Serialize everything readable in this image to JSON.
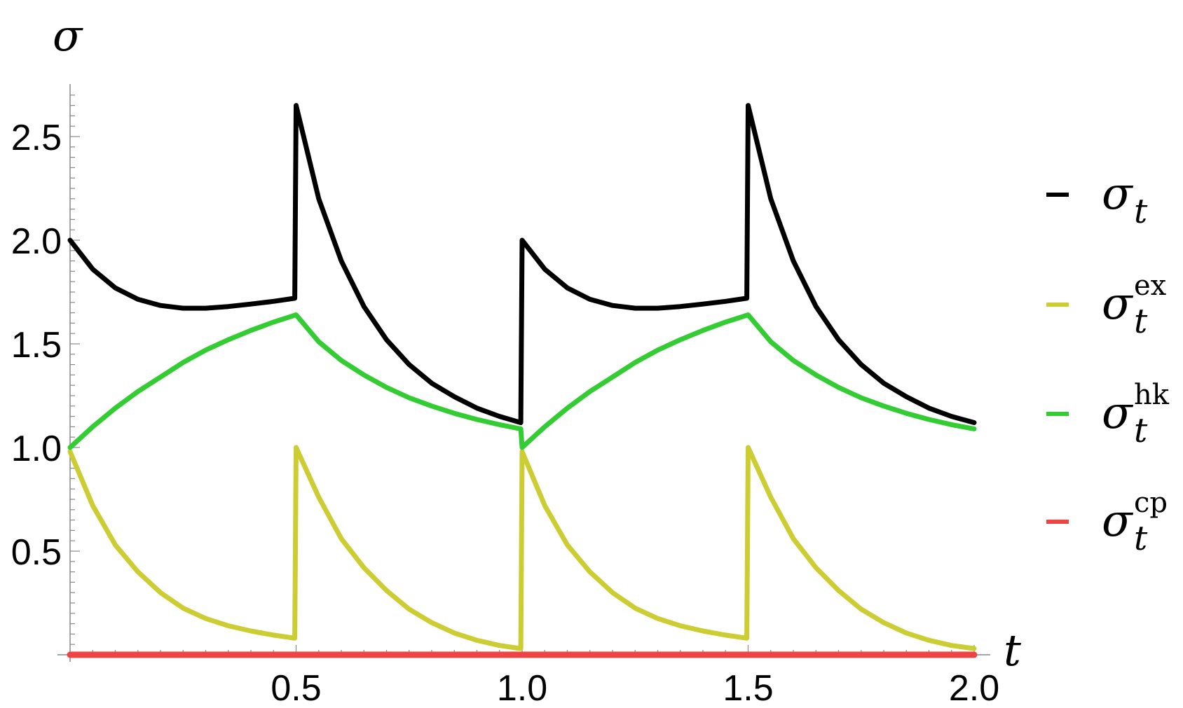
{
  "chart_data": {
    "type": "line",
    "title": "",
    "xlabel": "t",
    "ylabel": "σ",
    "xlim": [
      0,
      2.0
    ],
    "ylim": [
      0,
      2.7
    ],
    "x_ticks": [
      "0.5",
      "1.0",
      "1.5",
      "2.0"
    ],
    "y_ticks": [
      "0.5",
      "1.0",
      "1.5",
      "2.0",
      "2.5"
    ],
    "legend_position": "right",
    "series": [
      {
        "name": "σ_t",
        "base": "σ",
        "sub": "t",
        "sup": "",
        "color": "#000000",
        "points": [
          [
            0.0,
            2.0
          ],
          [
            0.05,
            1.86
          ],
          [
            0.1,
            1.77
          ],
          [
            0.15,
            1.715
          ],
          [
            0.2,
            1.685
          ],
          [
            0.25,
            1.672
          ],
          [
            0.3,
            1.672
          ],
          [
            0.35,
            1.68
          ],
          [
            0.4,
            1.692
          ],
          [
            0.45,
            1.705
          ],
          [
            0.497,
            1.72
          ],
          [
            0.5,
            2.65
          ],
          [
            0.55,
            2.2
          ],
          [
            0.6,
            1.9
          ],
          [
            0.65,
            1.68
          ],
          [
            0.7,
            1.52
          ],
          [
            0.75,
            1.4
          ],
          [
            0.8,
            1.31
          ],
          [
            0.85,
            1.245
          ],
          [
            0.9,
            1.19
          ],
          [
            0.95,
            1.15
          ],
          [
            0.997,
            1.12
          ],
          [
            1.0,
            2.0
          ],
          [
            1.05,
            1.86
          ],
          [
            1.1,
            1.77
          ],
          [
            1.15,
            1.715
          ],
          [
            1.2,
            1.685
          ],
          [
            1.25,
            1.672
          ],
          [
            1.3,
            1.672
          ],
          [
            1.35,
            1.68
          ],
          [
            1.4,
            1.692
          ],
          [
            1.45,
            1.705
          ],
          [
            1.497,
            1.72
          ],
          [
            1.5,
            2.65
          ],
          [
            1.55,
            2.2
          ],
          [
            1.6,
            1.9
          ],
          [
            1.65,
            1.68
          ],
          [
            1.7,
            1.52
          ],
          [
            1.75,
            1.4
          ],
          [
            1.8,
            1.31
          ],
          [
            1.85,
            1.245
          ],
          [
            1.9,
            1.19
          ],
          [
            1.95,
            1.15
          ],
          [
            2.0,
            1.12
          ]
        ]
      },
      {
        "name": "σ_t^ex",
        "base": "σ",
        "sub": "t",
        "sup": "ex",
        "color": "#cccc33",
        "points": [
          [
            0.0,
            0.98
          ],
          [
            0.05,
            0.72
          ],
          [
            0.1,
            0.53
          ],
          [
            0.15,
            0.4
          ],
          [
            0.2,
            0.3
          ],
          [
            0.25,
            0.225
          ],
          [
            0.3,
            0.175
          ],
          [
            0.35,
            0.14
          ],
          [
            0.4,
            0.115
          ],
          [
            0.45,
            0.095
          ],
          [
            0.497,
            0.08
          ],
          [
            0.5,
            1.0
          ],
          [
            0.55,
            0.76
          ],
          [
            0.6,
            0.56
          ],
          [
            0.65,
            0.42
          ],
          [
            0.7,
            0.31
          ],
          [
            0.75,
            0.22
          ],
          [
            0.8,
            0.155
          ],
          [
            0.85,
            0.105
          ],
          [
            0.9,
            0.07
          ],
          [
            0.95,
            0.045
          ],
          [
            0.997,
            0.03
          ],
          [
            1.0,
            0.98
          ],
          [
            1.05,
            0.72
          ],
          [
            1.1,
            0.53
          ],
          [
            1.15,
            0.4
          ],
          [
            1.2,
            0.3
          ],
          [
            1.25,
            0.225
          ],
          [
            1.3,
            0.175
          ],
          [
            1.35,
            0.14
          ],
          [
            1.4,
            0.115
          ],
          [
            1.45,
            0.095
          ],
          [
            1.497,
            0.08
          ],
          [
            1.5,
            1.0
          ],
          [
            1.55,
            0.76
          ],
          [
            1.6,
            0.56
          ],
          [
            1.65,
            0.42
          ],
          [
            1.7,
            0.31
          ],
          [
            1.75,
            0.22
          ],
          [
            1.8,
            0.155
          ],
          [
            1.85,
            0.105
          ],
          [
            1.9,
            0.07
          ],
          [
            1.95,
            0.045
          ],
          [
            2.0,
            0.03
          ]
        ]
      },
      {
        "name": "σ_t^hk",
        "base": "σ",
        "sub": "t",
        "sup": "hk",
        "color": "#33cc33",
        "points": [
          [
            0.0,
            1.0
          ],
          [
            0.05,
            1.1
          ],
          [
            0.1,
            1.19
          ],
          [
            0.15,
            1.27
          ],
          [
            0.2,
            1.34
          ],
          [
            0.25,
            1.41
          ],
          [
            0.3,
            1.47
          ],
          [
            0.35,
            1.52
          ],
          [
            0.4,
            1.565
          ],
          [
            0.45,
            1.605
          ],
          [
            0.5,
            1.64
          ],
          [
            0.55,
            1.51
          ],
          [
            0.6,
            1.42
          ],
          [
            0.65,
            1.35
          ],
          [
            0.7,
            1.29
          ],
          [
            0.75,
            1.24
          ],
          [
            0.8,
            1.2
          ],
          [
            0.85,
            1.165
          ],
          [
            0.9,
            1.135
          ],
          [
            0.95,
            1.11
          ],
          [
            0.997,
            1.09
          ],
          [
            1.0,
            1.0
          ],
          [
            1.05,
            1.1
          ],
          [
            1.1,
            1.19
          ],
          [
            1.15,
            1.27
          ],
          [
            1.2,
            1.34
          ],
          [
            1.25,
            1.41
          ],
          [
            1.3,
            1.47
          ],
          [
            1.35,
            1.52
          ],
          [
            1.4,
            1.565
          ],
          [
            1.45,
            1.605
          ],
          [
            1.5,
            1.64
          ],
          [
            1.55,
            1.51
          ],
          [
            1.6,
            1.42
          ],
          [
            1.65,
            1.35
          ],
          [
            1.7,
            1.29
          ],
          [
            1.75,
            1.24
          ],
          [
            1.8,
            1.2
          ],
          [
            1.85,
            1.165
          ],
          [
            1.9,
            1.135
          ],
          [
            1.95,
            1.11
          ],
          [
            2.0,
            1.09
          ]
        ]
      },
      {
        "name": "σ_t^cp",
        "base": "σ",
        "sub": "t",
        "sup": "cp",
        "color": "#ee4444",
        "points": [
          [
            0.0,
            0.0
          ],
          [
            2.0,
            0.0
          ]
        ]
      }
    ]
  }
}
